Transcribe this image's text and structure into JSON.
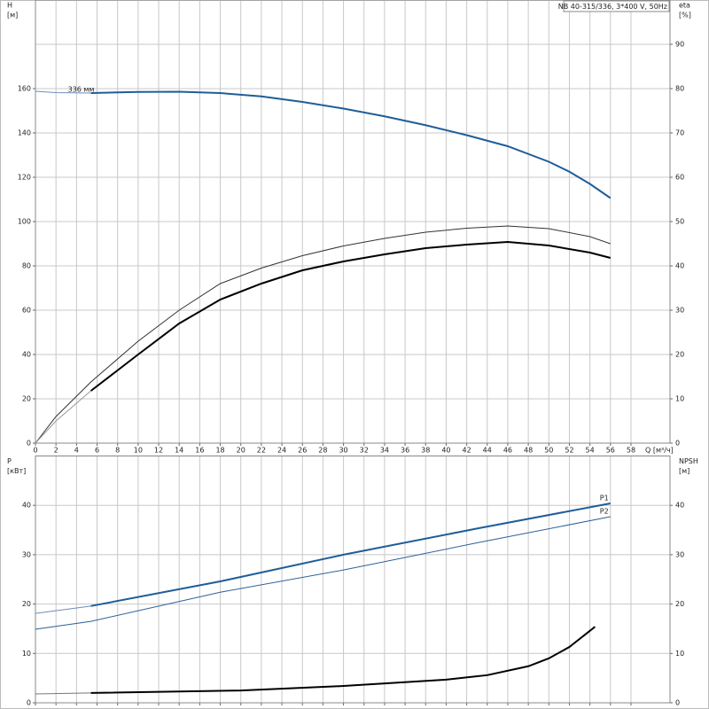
{
  "chart_data": [
    {
      "type": "line",
      "title": "NB 40-315/336, 3*400 V, 50Hz",
      "ylabel": [
        "H",
        "[м]"
      ],
      "y2label": [
        "eta",
        "[%]"
      ],
      "xlabel": "Q [м³/ч]",
      "xlim": [
        0,
        61.8
      ],
      "xticks": [
        0,
        2,
        4,
        6,
        8,
        10,
        12,
        14,
        16,
        18,
        20,
        22,
        24,
        26,
        28,
        30,
        32,
        34,
        36,
        38,
        40,
        42,
        44,
        46,
        48,
        50,
        52,
        54,
        56,
        58
      ],
      "show_xtick_labels": true,
      "ylim": [
        0,
        200
      ],
      "yticks": [
        0,
        20,
        40,
        60,
        80,
        100,
        120,
        140,
        160
      ],
      "y2lim": [
        0,
        100
      ],
      "y2ticks": [
        0,
        10,
        20,
        30,
        40,
        50,
        60,
        70,
        80,
        90
      ],
      "grid": true,
      "series_label_position": "start",
      "series": [
        {
          "color": "#6a8fb5",
          "linewidth": 1,
          "x": [
            0,
            2,
            5.4
          ],
          "values": [
            158.8,
            158.2,
            158
          ]
        },
        {
          "name": "336 мм",
          "color": "#1f5d99",
          "linewidth": 2,
          "x": [
            5.4,
            10,
            14,
            18,
            22,
            26,
            30,
            34,
            38,
            42,
            46,
            50,
            52,
            54,
            56
          ],
          "values": [
            158,
            158.5,
            158.6,
            158,
            156.5,
            154,
            151,
            147.5,
            143.5,
            139,
            134,
            127,
            122.5,
            117,
            110.6
          ]
        },
        {
          "color": "#333333",
          "linewidth": 1,
          "axis": "y2",
          "x": [
            0,
            2,
            5.4,
            10,
            14,
            18,
            22,
            26,
            30,
            34,
            38,
            42,
            46,
            50,
            54,
            56
          ],
          "values": [
            0,
            6,
            13.8,
            23,
            30,
            36,
            39.5,
            42.3,
            44.5,
            46.2,
            47.6,
            48.5,
            49,
            48.4,
            46.6,
            45
          ]
        },
        {
          "color": "#999999",
          "linewidth": 1,
          "axis": "y2",
          "x": [
            0,
            2,
            5.4
          ],
          "values": [
            0,
            5,
            11.8
          ]
        },
        {
          "color": "#000000",
          "linewidth": 2,
          "axis": "y2",
          "x": [
            5.4,
            10,
            14,
            18,
            22,
            26,
            30,
            34,
            38,
            42,
            46,
            50,
            54,
            56
          ],
          "values": [
            11.8,
            20,
            27,
            32.4,
            36,
            39,
            41,
            42.6,
            44,
            44.8,
            45.4,
            44.6,
            43,
            41.8
          ]
        }
      ]
    },
    {
      "type": "line",
      "ylabel": [
        "P",
        "[кВт]"
      ],
      "y2label": [
        "NPSH",
        "[м]"
      ],
      "xlim": [
        0,
        61.8
      ],
      "xticks": [
        0,
        2,
        4,
        6,
        8,
        10,
        12,
        14,
        16,
        18,
        20,
        22,
        24,
        26,
        28,
        30,
        32,
        34,
        36,
        38,
        40,
        42,
        44,
        46,
        48,
        50,
        52,
        54,
        56,
        58
      ],
      "show_xtick_labels": false,
      "ylim": [
        0,
        50
      ],
      "yticks": [
        0,
        10,
        20,
        30,
        40
      ],
      "y2lim": [
        0,
        50
      ],
      "y2ticks": [
        0,
        10,
        20,
        30,
        40
      ],
      "grid": true,
      "series_label_position": "end",
      "series": [
        {
          "color": "#6a8fb5",
          "linewidth": 1,
          "x": [
            0,
            5.4
          ],
          "values": [
            18.1,
            19.6
          ]
        },
        {
          "name": "P1",
          "color": "#1f5d99",
          "linewidth": 2,
          "x": [
            5.4,
            18,
            30,
            43,
            56
          ],
          "values": [
            19.6,
            24.6,
            30,
            35.3,
            40.4
          ]
        },
        {
          "name": "P2",
          "color": "#2d5f99",
          "linewidth": 1,
          "x": [
            0,
            5.4,
            18,
            30,
            43,
            56
          ],
          "values": [
            14.9,
            16.5,
            22.4,
            26.9,
            32.4,
            37.7
          ]
        },
        {
          "color": "#777777",
          "linewidth": 1,
          "axis": "y2",
          "x": [
            0,
            5.4
          ],
          "values": [
            1.8,
            2.0
          ]
        },
        {
          "color": "#000000",
          "linewidth": 2,
          "axis": "y2",
          "x": [
            5.4,
            20,
            30,
            40,
            44,
            48,
            50,
            52,
            54.5
          ],
          "values": [
            2.0,
            2.5,
            3.4,
            4.7,
            5.6,
            7.4,
            9,
            11.3,
            15.4
          ]
        }
      ]
    }
  ]
}
